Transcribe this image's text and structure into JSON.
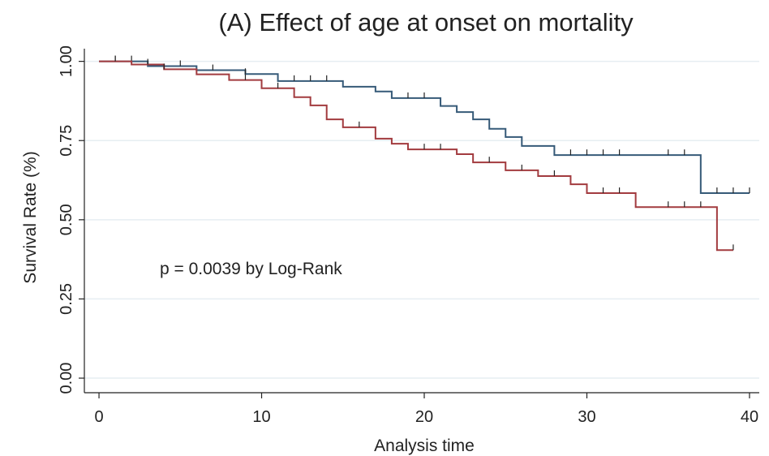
{
  "chart_data": {
    "type": "km",
    "title": "(A) Effect of age at onset on mortality",
    "x_label": "Analysis time",
    "y_label": "Survival Rate (%)",
    "annotation": "p = 0.0039 by Log-Rank",
    "xlim": [
      -0.9,
      40.6
    ],
    "ylim": [
      -0.046,
      1.04
    ],
    "xticks": [
      0,
      10,
      20,
      30,
      40
    ],
    "yticks": [
      {
        "value": 0,
        "label": "0.00"
      },
      {
        "value": 0.25,
        "label": "0.25"
      },
      {
        "value": 0.5,
        "label": "0.50"
      },
      {
        "value": 0.75,
        "label": "0.75"
      },
      {
        "value": 1,
        "label": "1.00"
      }
    ],
    "grid": true,
    "series": [
      {
        "color": "#365a78",
        "x": [
          0,
          3,
          6,
          9,
          11,
          15,
          17,
          18,
          21,
          22,
          23,
          24,
          25,
          26,
          28,
          37,
          40
        ],
        "values": [
          1.0,
          0.985,
          0.972,
          0.96,
          0.938,
          0.92,
          0.905,
          0.884,
          0.859,
          0.84,
          0.817,
          0.787,
          0.761,
          0.733,
          0.704,
          0.584,
          0.584
        ],
        "censored": [
          1,
          2,
          5,
          7,
          9,
          12,
          13,
          14,
          19,
          20,
          29,
          30,
          31,
          32,
          35,
          36,
          38,
          39,
          40
        ]
      },
      {
        "color": "#a23b3f",
        "x": [
          0,
          2,
          4,
          6,
          8,
          10,
          12,
          13,
          14,
          15,
          17,
          18,
          19,
          22,
          23,
          25,
          27,
          29,
          30,
          33,
          38,
          39
        ],
        "values": [
          1.0,
          0.99,
          0.975,
          0.959,
          0.941,
          0.915,
          0.887,
          0.861,
          0.817,
          0.792,
          0.756,
          0.74,
          0.722,
          0.707,
          0.681,
          0.656,
          0.638,
          0.612,
          0.584,
          0.54,
          0.404,
          0.404
        ],
        "censored": [
          1,
          3,
          4,
          9,
          11,
          16,
          20,
          21,
          24,
          26,
          28,
          31,
          32,
          35,
          36,
          37,
          39
        ]
      }
    ]
  }
}
